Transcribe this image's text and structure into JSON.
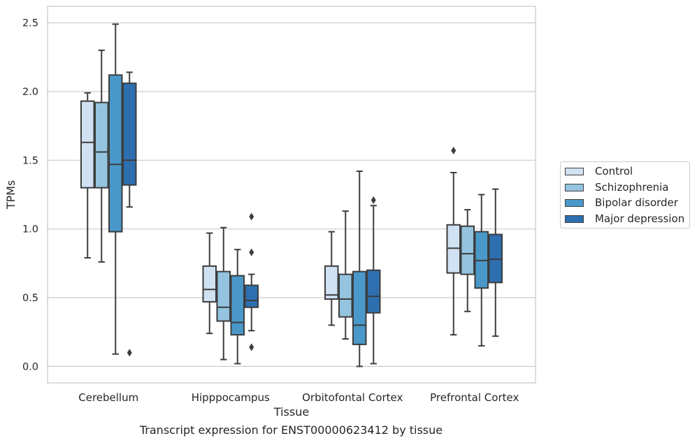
{
  "chart_data": {
    "type": "box",
    "xlabel": "Tissue",
    "ylabel": "TPMs",
    "ylim": [
      -0.12,
      2.62
    ],
    "yticks": [
      0.0,
      0.5,
      1.0,
      1.5,
      2.0,
      2.5
    ],
    "ytick_labels": [
      "0.0",
      "0.5",
      "1.0",
      "1.5",
      "2.0",
      "2.5"
    ],
    "categories": [
      "Cerebellum",
      "Hipppocampus",
      "Orbitofontal Cortex",
      "Prefrontal Cortex"
    ],
    "legend_position": "right",
    "grid": "horizontal",
    "series": [
      {
        "name": "Control",
        "color": "#d0e1f2",
        "boxes": [
          {
            "whislo": 0.79,
            "q1": 1.3,
            "med": 1.63,
            "q3": 1.93,
            "whishi": 1.99,
            "fliers": []
          },
          {
            "whislo": 0.24,
            "q1": 0.47,
            "med": 0.56,
            "q3": 0.73,
            "whishi": 0.97,
            "fliers": []
          },
          {
            "whislo": 0.3,
            "q1": 0.49,
            "med": 0.52,
            "q3": 0.73,
            "whishi": 0.98,
            "fliers": []
          },
          {
            "whislo": 0.23,
            "q1": 0.68,
            "med": 0.86,
            "q3": 1.03,
            "whishi": 1.41,
            "fliers": [
              1.57
            ]
          }
        ]
      },
      {
        "name": "Schizophrenia",
        "color": "#94c4df",
        "boxes": [
          {
            "whislo": 0.76,
            "q1": 1.3,
            "med": 1.56,
            "q3": 1.92,
            "whishi": 2.3,
            "fliers": []
          },
          {
            "whislo": 0.05,
            "q1": 0.33,
            "med": 0.43,
            "q3": 0.69,
            "whishi": 1.01,
            "fliers": []
          },
          {
            "whislo": 0.2,
            "q1": 0.36,
            "med": 0.49,
            "q3": 0.67,
            "whishi": 1.13,
            "fliers": []
          },
          {
            "whislo": 0.4,
            "q1": 0.67,
            "med": 0.82,
            "q3": 1.02,
            "whishi": 1.14,
            "fliers": []
          }
        ]
      },
      {
        "name": "Bipolar disorder",
        "color": "#4a98c9",
        "boxes": [
          {
            "whislo": 0.09,
            "q1": 0.98,
            "med": 1.47,
            "q3": 2.12,
            "whishi": 2.49,
            "fliers": []
          },
          {
            "whislo": 0.02,
            "q1": 0.23,
            "med": 0.32,
            "q3": 0.66,
            "whishi": 0.85,
            "fliers": []
          },
          {
            "whislo": 0.0,
            "q1": 0.16,
            "med": 0.3,
            "q3": 0.69,
            "whishi": 1.42,
            "fliers": []
          },
          {
            "whislo": 0.15,
            "q1": 0.57,
            "med": 0.77,
            "q3": 0.98,
            "whishi": 1.25,
            "fliers": []
          }
        ]
      },
      {
        "name": "Major depression",
        "color": "#2e6fb0",
        "boxes": [
          {
            "whislo": 1.16,
            "q1": 1.32,
            "med": 1.5,
            "q3": 2.06,
            "whishi": 2.14,
            "fliers": [
              0.1
            ]
          },
          {
            "whislo": 0.26,
            "q1": 0.43,
            "med": 0.48,
            "q3": 0.59,
            "whishi": 0.67,
            "fliers": [
              0.14,
              0.83,
              1.09
            ]
          },
          {
            "whislo": 0.02,
            "q1": 0.39,
            "med": 0.51,
            "q3": 0.7,
            "whishi": 1.17,
            "fliers": [
              1.21
            ]
          },
          {
            "whislo": 0.22,
            "q1": 0.61,
            "med": 0.78,
            "q3": 0.96,
            "whishi": 1.29,
            "fliers": []
          }
        ]
      }
    ]
  },
  "caption": "Transcript expression for ENST00000623412 by tissue"
}
